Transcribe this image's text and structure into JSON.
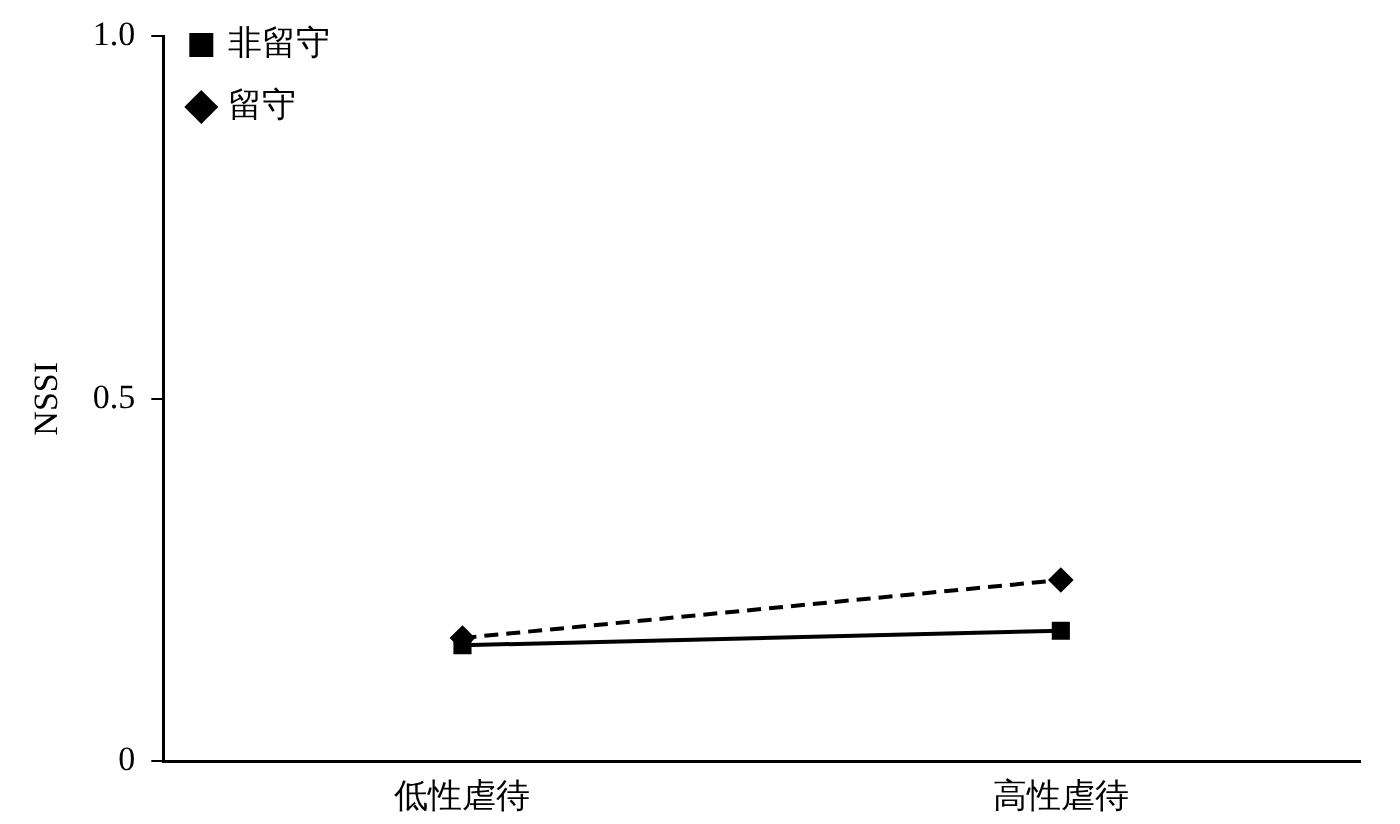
{
  "chart_data": {
    "type": "line",
    "ylabel": "NSSI",
    "categories": [
      "低性虐待",
      "高性虐待"
    ],
    "series": [
      {
        "name": "留守",
        "color": "#000000",
        "values": [
          0.17,
          0.25
        ],
        "marker": "diamond",
        "line_style": "dashed"
      },
      {
        "name": "非留守",
        "color": "#000000",
        "values": [
          0.16,
          0.18
        ],
        "marker": "square",
        "line_style": "solid"
      }
    ],
    "ylim": [
      0,
      1
    ],
    "yticks": [
      0,
      0.5,
      {
        "value": 1,
        "label": "1.0"
      }
    ],
    "grid": false,
    "legend": "top left"
  }
}
